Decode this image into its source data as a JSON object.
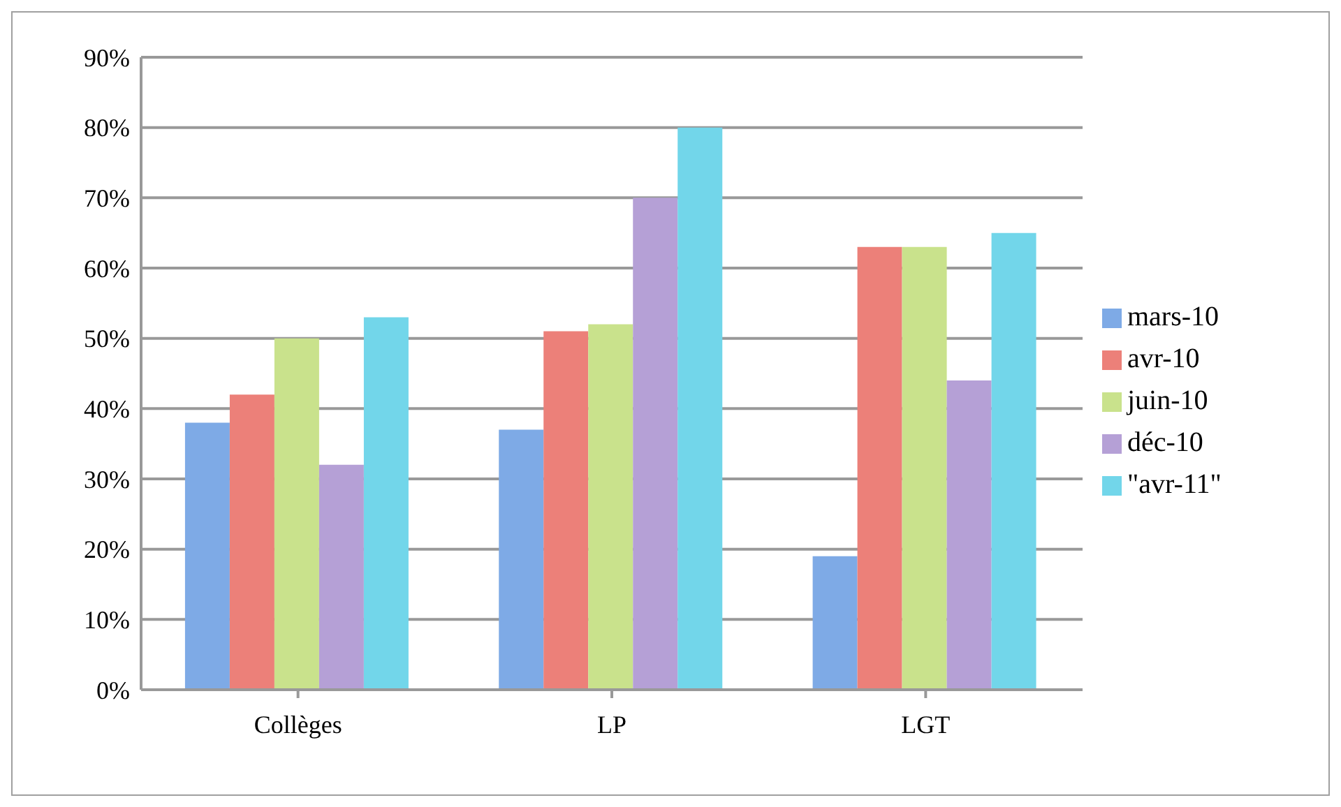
{
  "chart_data": {
    "type": "bar",
    "categories": [
      "Collèges",
      "LP",
      "LGT"
    ],
    "series": [
      {
        "name": "mars-10",
        "color": "#7eaae6",
        "values": [
          38,
          37,
          19
        ]
      },
      {
        "name": "avr-10",
        "color": "#ec8079",
        "values": [
          42,
          51,
          63
        ]
      },
      {
        "name": "juin-10",
        "color": "#c9e28c",
        "values": [
          50,
          52,
          63
        ]
      },
      {
        "name": "déc-10",
        "color": "#b5a0d6",
        "values": [
          32,
          70,
          44
        ]
      },
      {
        "name": "\"avr-11\"",
        "color": "#72d6ea",
        "values": [
          53,
          80,
          65
        ]
      }
    ],
    "ylim": [
      0,
      90
    ],
    "yticks": [
      {
        "value": 0,
        "label": "0%"
      },
      {
        "value": 10,
        "label": "10%"
      },
      {
        "value": 20,
        "label": "20%"
      },
      {
        "value": 30,
        "label": "30%"
      },
      {
        "value": 40,
        "label": "40%"
      },
      {
        "value": 50,
        "label": "50%"
      },
      {
        "value": 60,
        "label": "60%"
      },
      {
        "value": 70,
        "label": "70%"
      },
      {
        "value": 80,
        "label": "80%"
      },
      {
        "value": 90,
        "label": "90%"
      }
    ],
    "grid": "y",
    "legend": "right"
  }
}
